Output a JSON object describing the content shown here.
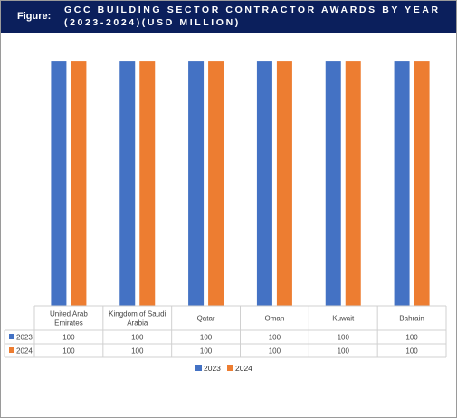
{
  "header": {
    "figure_label": "Figure:",
    "title": "GCC BUILDING SECTOR CONTRACTOR AWARDS BY YEAR (2023-2024)(USD MILLION)"
  },
  "colors": {
    "series_2023": "#4472c4",
    "series_2024": "#ed7d31",
    "header_bg": "#0b1f5c"
  },
  "chart_data": {
    "type": "bar",
    "title": "GCC BUILDING SECTOR CONTRACTOR AWARDS BY YEAR (2023-2024)(USD MILLION)",
    "categories": [
      "United Arab Emirates",
      "Kingdom of Saudi Arabia",
      "Qatar",
      "Oman",
      "Kuwait",
      "Bahrain"
    ],
    "category_label_lines": [
      [
        "United Arab",
        "Emirates"
      ],
      [
        "Kingdom of Saudi",
        "Arabia"
      ],
      [
        "Qatar"
      ],
      [
        "Oman"
      ],
      [
        "Kuwait"
      ],
      [
        "Bahrain"
      ]
    ],
    "series": [
      {
        "name": "2023",
        "values": [
          100,
          100,
          100,
          100,
          100,
          100
        ]
      },
      {
        "name": "2024",
        "values": [
          100,
          100,
          100,
          100,
          100,
          100
        ]
      }
    ],
    "ylim": [
      0,
      110
    ],
    "grid": false,
    "legend": "bottom",
    "data_table": true
  }
}
